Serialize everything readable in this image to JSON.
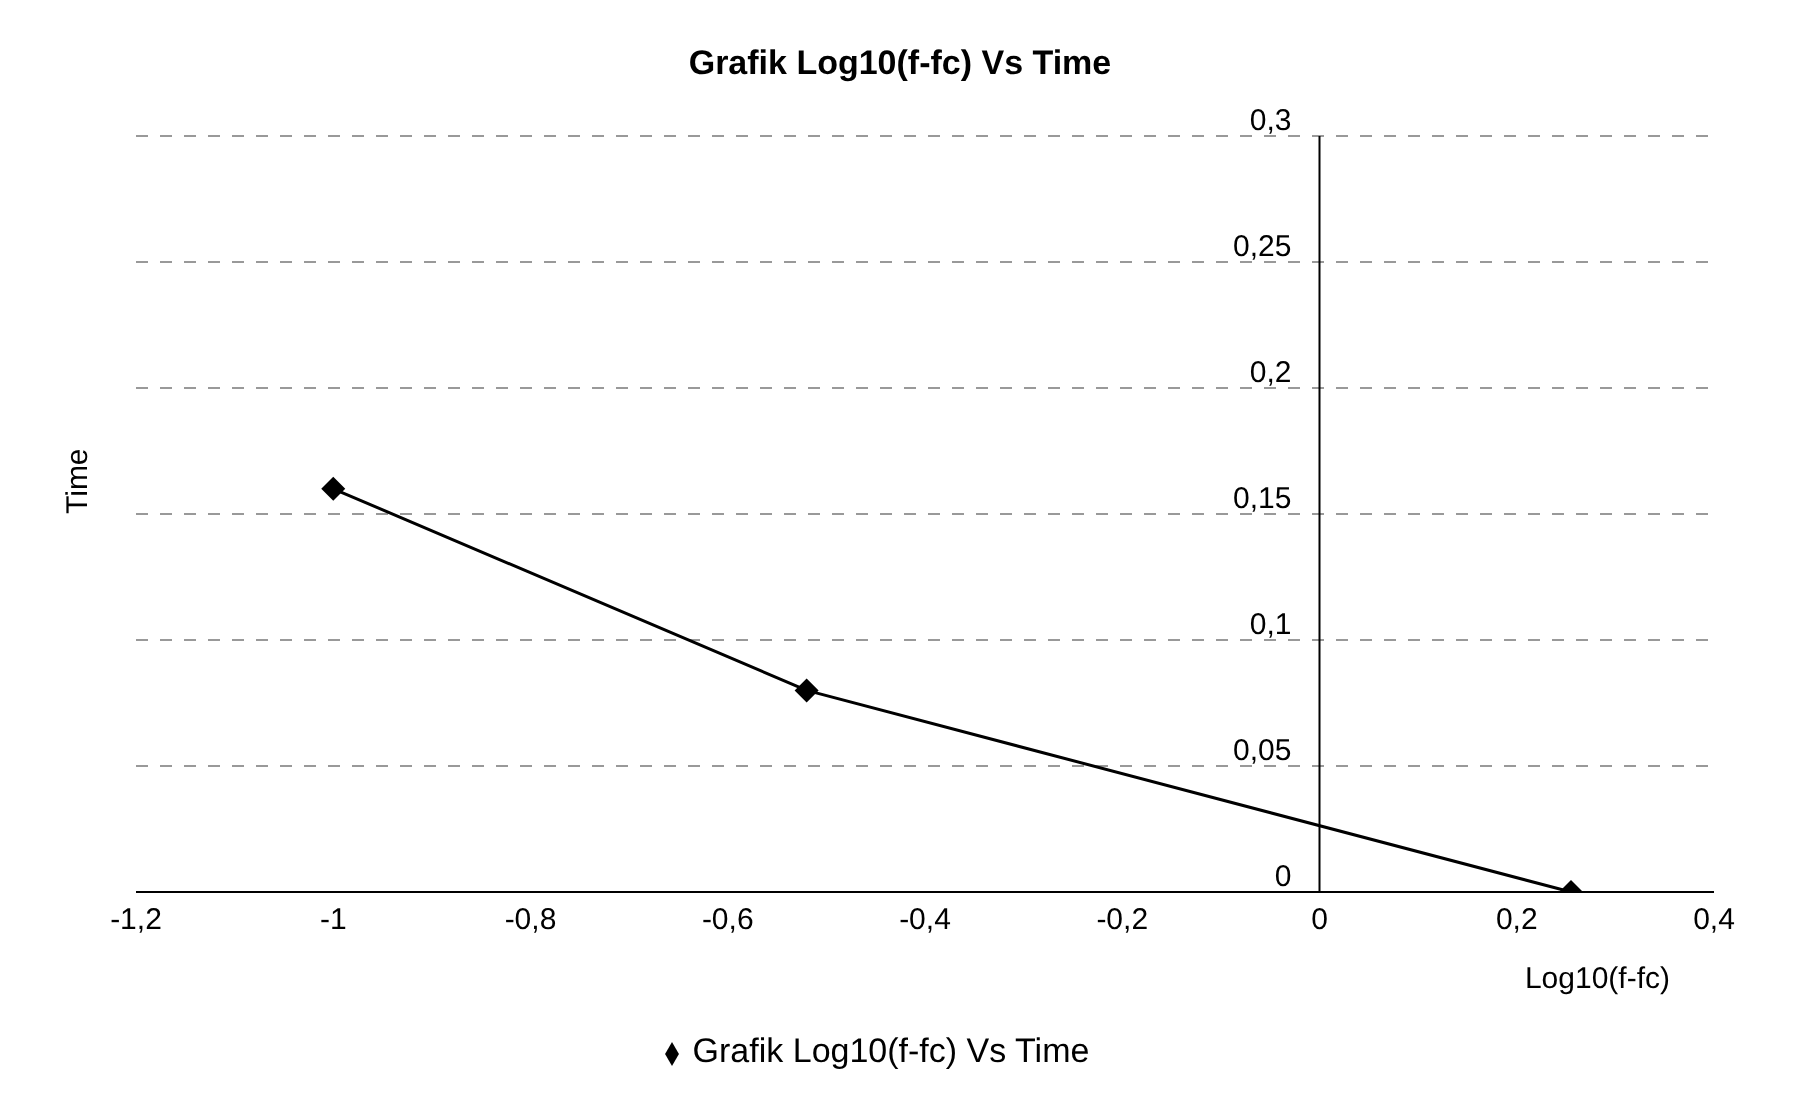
{
  "chart_data": {
    "type": "line",
    "title": "Grafik Log10(f-fc) Vs Time",
    "xlabel": "Log10(f-fc)",
    "ylabel": "Time",
    "x": [
      -1,
      -0.52,
      0.255
    ],
    "series": [
      {
        "name": "Grafik Log10(f-fc) Vs Time",
        "color": "#000000",
        "values": [
          0.16,
          0.08,
          0
        ]
      }
    ],
    "xlim": [
      -1.2,
      0.4
    ],
    "xticks": [
      {
        "value": -1.2,
        "label": "-1,2"
      },
      {
        "value": -1,
        "label": "-1"
      },
      {
        "value": -0.8,
        "label": "-0,8"
      },
      {
        "value": -0.6,
        "label": "-0,6"
      },
      {
        "value": -0.4,
        "label": "-0,4"
      },
      {
        "value": -0.2,
        "label": "-0,2"
      },
      {
        "value": 0,
        "label": "0"
      },
      {
        "value": 0.2,
        "label": "0,2"
      },
      {
        "value": 0.4,
        "label": "0,4"
      }
    ],
    "ylim": [
      0,
      0.3
    ],
    "yticks": [
      {
        "value": 0,
        "label": "0"
      },
      {
        "value": 0.05,
        "label": "0,05"
      },
      {
        "value": 0.1,
        "label": "0,1"
      },
      {
        "value": 0.15,
        "label": "0,15"
      },
      {
        "value": 0.2,
        "label": "0,2"
      },
      {
        "value": 0.25,
        "label": "0,25"
      },
      {
        "value": 0.3,
        "label": "0,3"
      }
    ],
    "grid": "y",
    "legend": "bottom",
    "marker": "diamond",
    "line_style": "solid"
  }
}
